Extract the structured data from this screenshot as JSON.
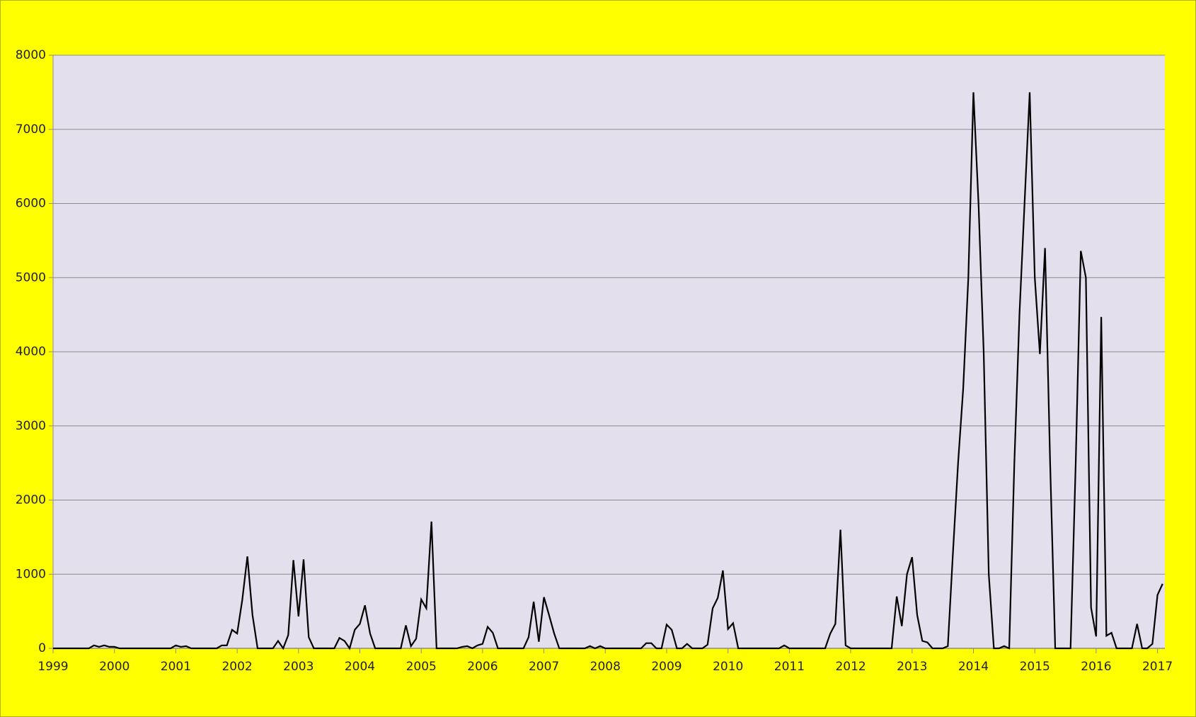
{
  "chart_data": {
    "type": "line",
    "x": [
      1999,
      1999.083,
      1999.167,
      1999.25,
      1999.333,
      1999.417,
      1999.5,
      1999.583,
      1999.667,
      1999.75,
      1999.833,
      1999.917,
      2000,
      2000.083,
      2000.167,
      2000.25,
      2000.333,
      2000.417,
      2000.5,
      2000.583,
      2000.667,
      2000.75,
      2000.833,
      2000.917,
      2001,
      2001.083,
      2001.167,
      2001.25,
      2001.333,
      2001.417,
      2001.5,
      2001.583,
      2001.667,
      2001.75,
      2001.833,
      2001.917,
      2002,
      2002.083,
      2002.167,
      2002.25,
      2002.333,
      2002.417,
      2002.5,
      2002.583,
      2002.667,
      2002.75,
      2002.833,
      2002.917,
      2003,
      2003.083,
      2003.167,
      2003.25,
      2003.333,
      2003.417,
      2003.5,
      2003.583,
      2003.667,
      2003.75,
      2003.833,
      2003.917,
      2004,
      2004.083,
      2004.167,
      2004.25,
      2004.333,
      2004.417,
      2004.5,
      2004.583,
      2004.667,
      2004.75,
      2004.833,
      2004.917,
      2005,
      2005.083,
      2005.167,
      2005.25,
      2005.333,
      2005.417,
      2005.5,
      2005.583,
      2005.667,
      2005.75,
      2005.833,
      2005.917,
      2006,
      2006.083,
      2006.167,
      2006.25,
      2006.333,
      2006.417,
      2006.5,
      2006.583,
      2006.667,
      2006.75,
      2006.833,
      2006.917,
      2007,
      2007.083,
      2007.167,
      2007.25,
      2007.333,
      2007.417,
      2007.5,
      2007.583,
      2007.667,
      2007.75,
      2007.833,
      2007.917,
      2008,
      2008.083,
      2008.167,
      2008.25,
      2008.333,
      2008.417,
      2008.5,
      2008.583,
      2008.667,
      2008.75,
      2008.833,
      2008.917,
      2009,
      2009.083,
      2009.167,
      2009.25,
      2009.333,
      2009.417,
      2009.5,
      2009.583,
      2009.667,
      2009.75,
      2009.833,
      2009.917,
      2010,
      2010.083,
      2010.167,
      2010.25,
      2010.333,
      2010.417,
      2010.5,
      2010.583,
      2010.667,
      2010.75,
      2010.833,
      2010.917,
      2011,
      2011.083,
      2011.167,
      2011.25,
      2011.333,
      2011.417,
      2011.5,
      2011.583,
      2011.667,
      2011.75,
      2011.833,
      2011.917,
      2012,
      2012.083,
      2012.167,
      2012.25,
      2012.333,
      2012.417,
      2012.5,
      2012.583,
      2012.667,
      2012.75,
      2012.833,
      2012.917,
      2013,
      2013.083,
      2013.167,
      2013.25,
      2013.333,
      2013.417,
      2013.5,
      2013.583,
      2013.667,
      2013.75,
      2013.833,
      2013.917,
      2014,
      2014.083,
      2014.167,
      2014.25,
      2014.333,
      2014.417,
      2014.5,
      2014.583,
      2014.667,
      2014.75,
      2014.833,
      2014.917,
      2015,
      2015.083,
      2015.167,
      2015.25,
      2015.333,
      2015.417,
      2015.5,
      2015.583,
      2015.667,
      2015.75,
      2015.833,
      2015.917,
      2016,
      2016.083,
      2016.167,
      2016.25,
      2016.333,
      2016.417,
      2016.5,
      2016.583,
      2016.667,
      2016.75,
      2016.833,
      2016.917,
      2017,
      2017.083
    ],
    "series": [
      {
        "color": "#000000",
        "values": [
          0,
          0,
          0,
          0,
          0,
          0,
          0,
          0,
          40,
          20,
          40,
          20,
          20,
          0,
          0,
          0,
          0,
          0,
          0,
          0,
          0,
          0,
          0,
          0,
          40,
          20,
          30,
          0,
          0,
          0,
          0,
          0,
          0,
          40,
          40,
          250,
          200,
          650,
          1240,
          450,
          0,
          0,
          0,
          0,
          100,
          0,
          180,
          1190,
          430,
          1200,
          150,
          0,
          0,
          0,
          0,
          0,
          140,
          100,
          0,
          250,
          330,
          580,
          200,
          0,
          0,
          0,
          0,
          0,
          0,
          310,
          30,
          130,
          660,
          540,
          1710,
          0,
          0,
          0,
          0,
          0,
          20,
          30,
          0,
          40,
          60,
          290,
          210,
          0,
          0,
          0,
          0,
          0,
          0,
          150,
          630,
          90,
          690,
          450,
          200,
          0,
          0,
          0,
          0,
          0,
          0,
          30,
          0,
          30,
          0,
          0,
          0,
          0,
          0,
          0,
          0,
          0,
          70,
          70,
          0,
          0,
          320,
          250,
          0,
          0,
          60,
          0,
          0,
          0,
          50,
          540,
          680,
          1050,
          260,
          340,
          0,
          0,
          0,
          0,
          0,
          0,
          0,
          0,
          0,
          40,
          0,
          0,
          0,
          0,
          0,
          0,
          0,
          0,
          200,
          330,
          1600,
          40,
          0,
          0,
          0,
          0,
          0,
          0,
          0,
          0,
          0,
          700,
          300,
          1000,
          1230,
          450,
          100,
          80,
          0,
          0,
          0,
          30,
          1300,
          2500,
          3500,
          5000,
          7500,
          6000,
          4000,
          1000,
          0,
          0,
          30,
          0,
          2500,
          4500,
          6000,
          7500,
          5000,
          3970,
          5400,
          2500,
          0,
          0,
          0,
          0,
          2500,
          5360,
          5000,
          550,
          160,
          4470,
          170,
          210,
          0,
          0,
          0,
          0,
          330,
          0,
          0,
          60,
          720,
          870
        ]
      }
    ],
    "xlim": [
      1999,
      2017.12
    ],
    "xticks": [
      1999,
      2000,
      2001,
      2002,
      2003,
      2004,
      2005,
      2006,
      2007,
      2008,
      2009,
      2010,
      2011,
      2012,
      2013,
      2014,
      2015,
      2016,
      2017
    ],
    "ylim": [
      0,
      8000
    ],
    "yticks": [
      0,
      1000,
      2000,
      3000,
      4000,
      5000,
      6000,
      7000,
      8000
    ],
    "grid": true
  }
}
